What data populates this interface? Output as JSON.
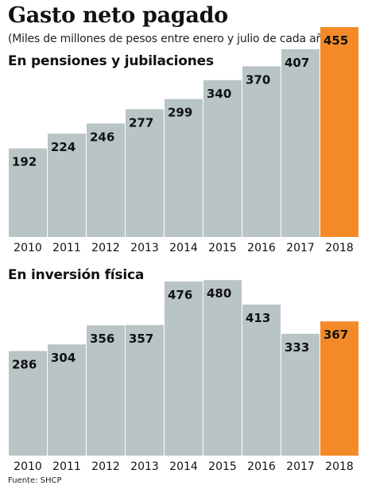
{
  "title": "Gasto neto pagado",
  "subtitle": "(Miles de millones de pesos entre enero y julio de cada año)",
  "source": "Fuente: SHCP",
  "colors": {
    "bar": "#b8c4c6",
    "highlight": "#f48a27",
    "text": "#111111"
  },
  "chart_data": [
    {
      "type": "bar",
      "title": "En pensiones y jubilaciones",
      "categories": [
        "2010",
        "2011",
        "2012",
        "2013",
        "2014",
        "2015",
        "2016",
        "2017",
        "2018"
      ],
      "values": [
        192,
        224,
        246,
        277,
        299,
        340,
        370,
        407,
        455
      ],
      "highlight_category": "2018",
      "xlabel": "",
      "ylabel": "",
      "grid": false,
      "legend": "none"
    },
    {
      "type": "bar",
      "title": "En inversión física",
      "categories": [
        "2010",
        "2011",
        "2012",
        "2013",
        "2014",
        "2015",
        "2016",
        "2017",
        "2018"
      ],
      "values": [
        286,
        304,
        356,
        357,
        476,
        480,
        413,
        333,
        367
      ],
      "highlight_category": "2018",
      "xlabel": "",
      "ylabel": "",
      "grid": false,
      "legend": "none"
    }
  ]
}
